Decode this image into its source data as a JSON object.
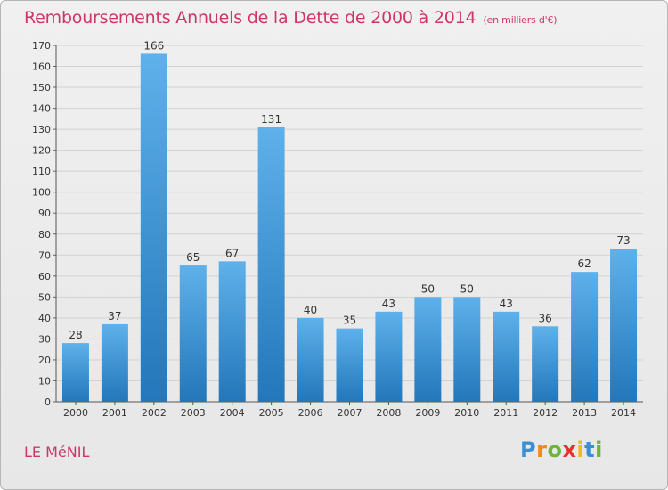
{
  "header": {
    "title": "Remboursements Annuels de la Dette de 2000 à 2014",
    "unit": "(en milliers d'€)"
  },
  "footer": {
    "commune": "LE MéNIL",
    "logo": {
      "letters": [
        "P",
        "r",
        "o",
        "x",
        "i",
        "t",
        "i"
      ],
      "colors": [
        "#3a8fd6",
        "#f08a1c",
        "#6cb33f",
        "#e2322f",
        "#f3b81c",
        "#3a8fd6",
        "#6cb33f"
      ]
    }
  },
  "chart_data": {
    "type": "bar",
    "categories": [
      "2000",
      "2001",
      "2002",
      "2003",
      "2004",
      "2005",
      "2006",
      "2007",
      "2008",
      "2009",
      "2010",
      "2011",
      "2012",
      "2013",
      "2014"
    ],
    "values": [
      28,
      37,
      166,
      65,
      67,
      131,
      40,
      35,
      43,
      50,
      50,
      43,
      36,
      62,
      73
    ],
    "ylim": [
      0,
      170
    ],
    "ytick_step": 10,
    "grid": true,
    "colors": {
      "bar_top": "#5eb1ea",
      "bar_bottom": "#2377ba",
      "grid": "#d2d2d2",
      "text": "#333333"
    }
  }
}
